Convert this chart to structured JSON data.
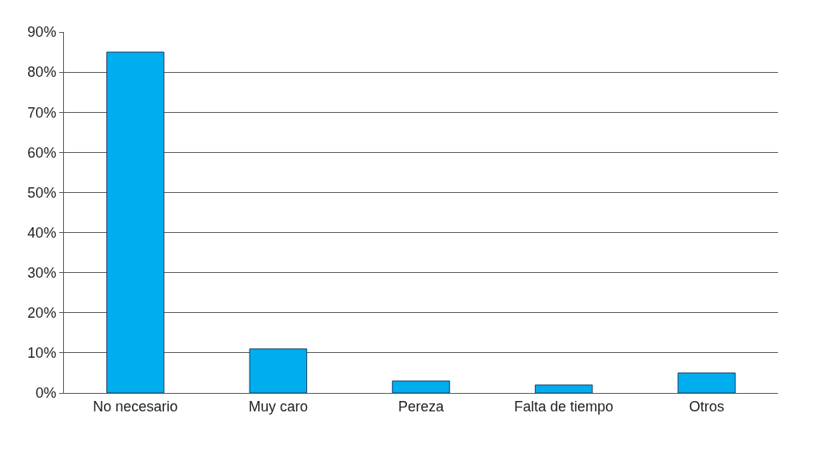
{
  "chart_data": {
    "type": "bar",
    "categories": [
      "No necesario",
      "Muy caro",
      "Pereza",
      "Falta de tiempo",
      "Otros"
    ],
    "values": [
      85,
      11,
      3,
      2,
      5
    ],
    "color": "#00adef",
    "ylim": [
      0,
      90
    ],
    "yticks": [
      {
        "value": 0,
        "label": "0%"
      },
      {
        "value": 10,
        "label": "10%"
      },
      {
        "value": 20,
        "label": "20%"
      },
      {
        "value": 30,
        "label": "30%"
      },
      {
        "value": 40,
        "label": "40%"
      },
      {
        "value": 50,
        "label": "50%"
      },
      {
        "value": 60,
        "label": "60%"
      },
      {
        "value": 70,
        "label": "70%"
      },
      {
        "value": 80,
        "label": "80%"
      },
      {
        "value": 90,
        "label": "90%"
      }
    ],
    "grid": "y"
  }
}
